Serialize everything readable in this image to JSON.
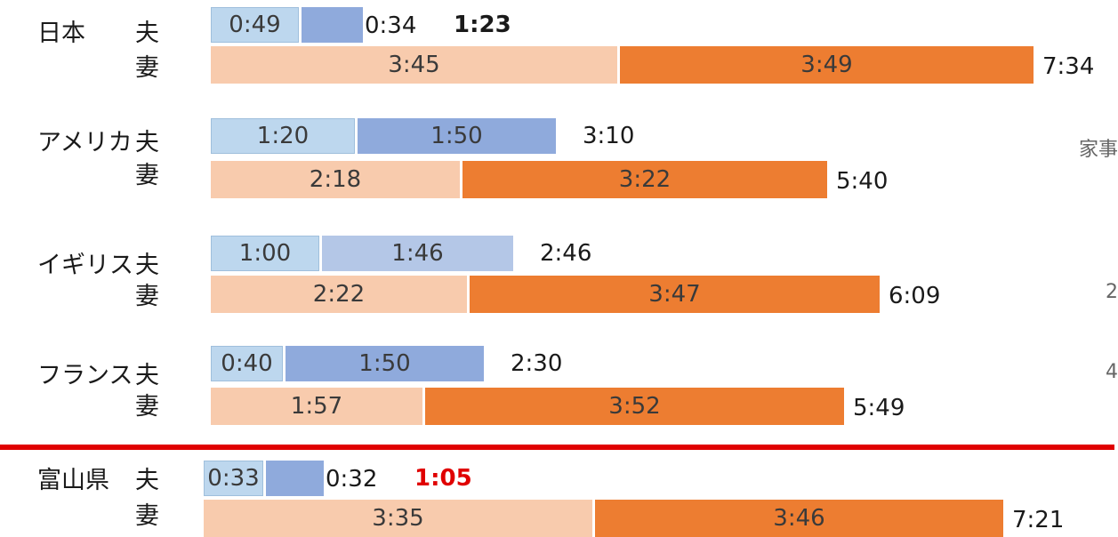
{
  "chart_data": {
    "type": "bar",
    "orientation": "horizontal",
    "stacked": true,
    "grid": false,
    "legend": "none",
    "categories": [
      "日本",
      "アメリカ",
      "イギリス",
      "フランス",
      "富山県"
    ],
    "series": [
      {
        "group": "夫",
        "values": [
          "0:49",
          "1:20",
          "1:00",
          "0:40",
          "0:33"
        ]
      },
      {
        "group": "夫",
        "values": [
          "0:34",
          "1:50",
          "1:46",
          "1:50",
          "0:32"
        ]
      },
      {
        "group": "妻",
        "values": [
          "3:45",
          "2:18",
          "2:22",
          "1:57",
          "3:35"
        ]
      },
      {
        "group": "妻",
        "values": [
          "3:49",
          "3:22",
          "3:47",
          "3:52",
          "3:46"
        ]
      }
    ],
    "totals": {
      "husband": [
        "1:23",
        "3:10",
        "2:46",
        "2:30",
        "1:05"
      ],
      "wife": [
        "7:34",
        "5:40",
        "6:09",
        "5:49",
        "7:21"
      ]
    },
    "colors": {
      "husband_1": "#bdd7ee",
      "husband_2": "#8faadc",
      "husband_2_uk": "#b4c7e7",
      "wife_1": "#f8cbad",
      "wife_2": "#ed7d31",
      "divider": "#e00000",
      "highlight": "#e00000"
    }
  },
  "labels": {
    "husband": "夫",
    "wife": "妻"
  },
  "cut_text": {
    "right_1": "家事",
    "right_2": "2",
    "right_3": "4"
  }
}
